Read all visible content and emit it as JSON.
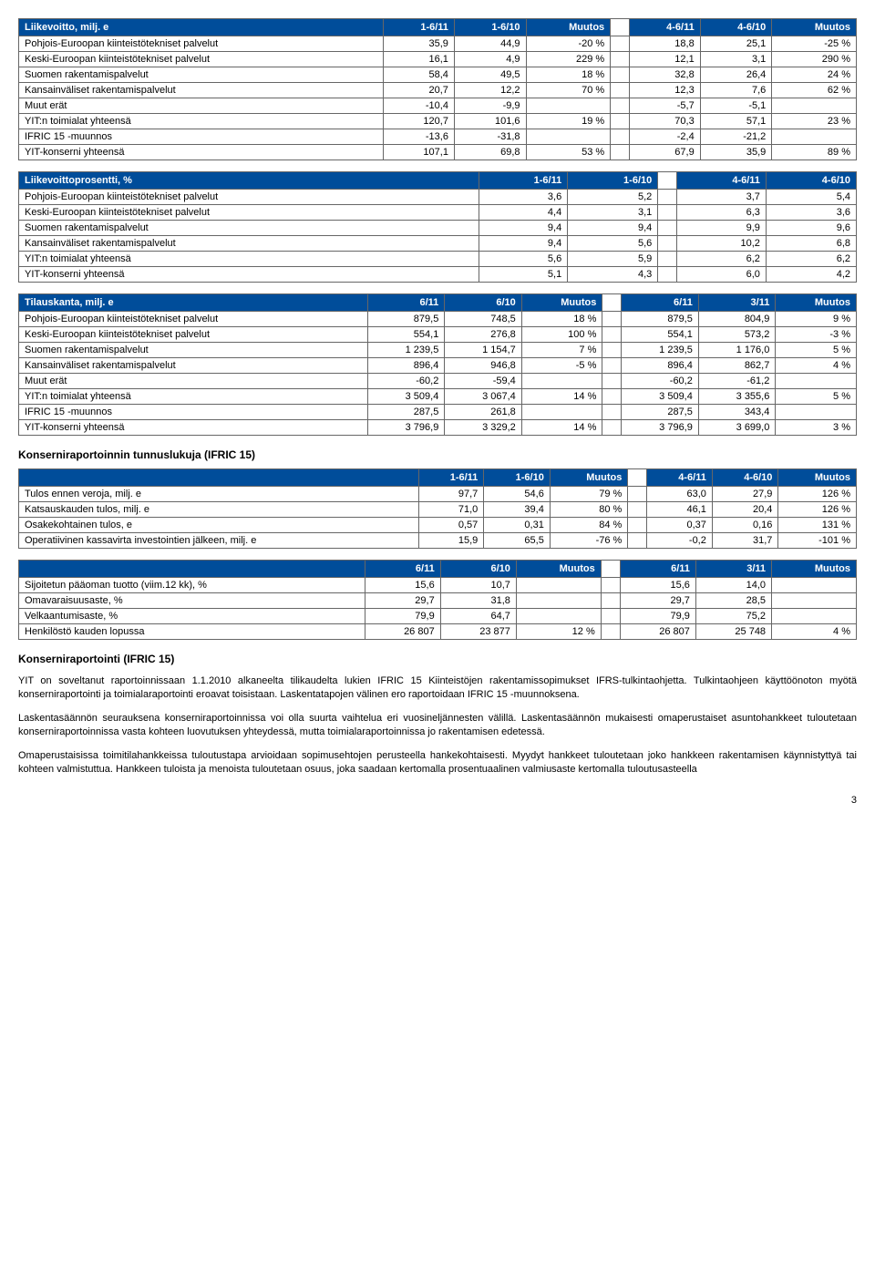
{
  "table1": {
    "title": "Liikevoitto, milj. e",
    "cols": [
      "1-6/11",
      "1-6/10",
      "Muutos",
      "4-6/11",
      "4-6/10",
      "Muutos"
    ],
    "rows": [
      {
        "label": "Pohjois-Euroopan kiinteistötekniset palvelut",
        "v": [
          "35,9",
          "44,9",
          "-20 %",
          "18,8",
          "25,1",
          "-25 %"
        ]
      },
      {
        "label": "Keski-Euroopan kiinteistötekniset palvelut",
        "v": [
          "16,1",
          "4,9",
          "229 %",
          "12,1",
          "3,1",
          "290 %"
        ]
      },
      {
        "label": "Suomen rakentamispalvelut",
        "v": [
          "58,4",
          "49,5",
          "18 %",
          "32,8",
          "26,4",
          "24 %"
        ]
      },
      {
        "label": "Kansainväliset rakentamispalvelut",
        "v": [
          "20,7",
          "12,2",
          "70 %",
          "12,3",
          "7,6",
          "62 %"
        ]
      },
      {
        "label": "Muut erät",
        "v": [
          "-10,4",
          "-9,9",
          "",
          "-5,7",
          "-5,1",
          ""
        ]
      },
      {
        "label": "YIT:n toimialat yhteensä",
        "v": [
          "120,7",
          "101,6",
          "19 %",
          "70,3",
          "57,1",
          "23 %"
        ]
      },
      {
        "label": "IFRIC 15 -muunnos",
        "v": [
          "-13,6",
          "-31,8",
          "",
          "-2,4",
          "-21,2",
          ""
        ]
      },
      {
        "label": "YIT-konserni yhteensä",
        "v": [
          "107,1",
          "69,8",
          "53 %",
          "67,9",
          "35,9",
          "89 %"
        ]
      }
    ]
  },
  "table2": {
    "title": "Liikevoittoprosentti, %",
    "cols": [
      "1-6/11",
      "1-6/10",
      "4-6/11",
      "4-6/10"
    ],
    "rows": [
      {
        "label": "Pohjois-Euroopan kiinteistötekniset palvelut",
        "v": [
          "3,6",
          "5,2",
          "3,7",
          "5,4"
        ]
      },
      {
        "label": "Keski-Euroopan kiinteistötekniset palvelut",
        "v": [
          "4,4",
          "3,1",
          "6,3",
          "3,6"
        ]
      },
      {
        "label": "Suomen rakentamispalvelut",
        "v": [
          "9,4",
          "9,4",
          "9,9",
          "9,6"
        ]
      },
      {
        "label": "Kansainväliset rakentamispalvelut",
        "v": [
          "9,4",
          "5,6",
          "10,2",
          "6,8"
        ]
      },
      {
        "label": "YIT:n toimialat yhteensä",
        "v": [
          "5,6",
          "5,9",
          "6,2",
          "6,2"
        ]
      },
      {
        "label": "YIT-konserni yhteensä",
        "v": [
          "5,1",
          "4,3",
          "6,0",
          "4,2"
        ]
      }
    ]
  },
  "table3": {
    "title": "Tilauskanta, milj. e",
    "cols": [
      "6/11",
      "6/10",
      "Muutos",
      "6/11",
      "3/11",
      "Muutos"
    ],
    "rows": [
      {
        "label": "Pohjois-Euroopan kiinteistötekniset palvelut",
        "v": [
          "879,5",
          "748,5",
          "18 %",
          "879,5",
          "804,9",
          "9 %"
        ]
      },
      {
        "label": "Keski-Euroopan kiinteistötekniset palvelut",
        "v": [
          "554,1",
          "276,8",
          "100 %",
          "554,1",
          "573,2",
          "-3 %"
        ]
      },
      {
        "label": "Suomen rakentamispalvelut",
        "v": [
          "1 239,5",
          "1 154,7",
          "7 %",
          "1 239,5",
          "1 176,0",
          "5 %"
        ]
      },
      {
        "label": "Kansainväliset rakentamispalvelut",
        "v": [
          "896,4",
          "946,8",
          "-5 %",
          "896,4",
          "862,7",
          "4 %"
        ]
      },
      {
        "label": "Muut erät",
        "v": [
          "-60,2",
          "-59,4",
          "",
          "-60,2",
          "-61,2",
          ""
        ]
      },
      {
        "label": "YIT:n toimialat yhteensä",
        "v": [
          "3 509,4",
          "3 067,4",
          "14 %",
          "3 509,4",
          "3 355,6",
          "5 %"
        ]
      },
      {
        "label": "IFRIC 15 -muunnos",
        "v": [
          "287,5",
          "261,8",
          "",
          "287,5",
          "343,4",
          ""
        ]
      },
      {
        "label": "YIT-konserni yhteensä",
        "v": [
          "3 796,9",
          "3 329,2",
          "14 %",
          "3 796,9",
          "3 699,0",
          "3 %"
        ]
      }
    ]
  },
  "heading1": "Konserniraportoinnin tunnuslukuja (IFRIC 15)",
  "table4": {
    "cols": [
      "1-6/11",
      "1-6/10",
      "Muutos",
      "4-6/11",
      "4-6/10",
      "Muutos"
    ],
    "rows": [
      {
        "label": "Tulos ennen veroja, milj. e",
        "v": [
          "97,7",
          "54,6",
          "79 %",
          "63,0",
          "27,9",
          "126 %"
        ]
      },
      {
        "label": "Katsauskauden tulos, milj. e",
        "v": [
          "71,0",
          "39,4",
          "80 %",
          "46,1",
          "20,4",
          "126 %"
        ]
      },
      {
        "label": "Osakekohtainen tulos, e",
        "v": [
          "0,57",
          "0,31",
          "84 %",
          "0,37",
          "0,16",
          "131 %"
        ]
      },
      {
        "label": "Operatiivinen kassavirta investointien jälkeen, milj. e",
        "v": [
          "15,9",
          "65,5",
          "-76 %",
          "-0,2",
          "31,7",
          "-101 %"
        ]
      }
    ]
  },
  "table5": {
    "cols": [
      "6/11",
      "6/10",
      "Muutos",
      "6/11",
      "3/11",
      "Muutos"
    ],
    "rows": [
      {
        "label": "Sijoitetun pääoman tuotto (viim.12 kk), %",
        "v": [
          "15,6",
          "10,7",
          "",
          "15,6",
          "14,0",
          ""
        ]
      },
      {
        "label": "Omavaraisuusaste, %",
        "v": [
          "29,7",
          "31,8",
          "",
          "29,7",
          "28,5",
          ""
        ]
      },
      {
        "label": "Velkaantumisaste, %",
        "v": [
          "79,9",
          "64,7",
          "",
          "79,9",
          "75,2",
          ""
        ]
      },
      {
        "label": "Henkilöstö kauden lopussa",
        "v": [
          "26 807",
          "23 877",
          "12 %",
          "26 807",
          "25 748",
          "4 %"
        ]
      }
    ]
  },
  "heading2": "Konserniraportointi (IFRIC 15)",
  "para1": "YIT on soveltanut raportoinnissaan 1.1.2010 alkaneelta tilikaudelta lukien IFRIC 15 Kiinteistöjen rakentamissopimukset IFRS-tulkintaohjetta. Tulkintaohjeen käyttöönoton myötä konserniraportointi ja toimialaraportointi eroavat toisistaan. Laskentatapojen välinen ero raportoidaan IFRIC 15 -muunnoksena.",
  "para2": "Laskentasäännön seurauksena konserniraportoinnissa voi olla suurta vaihtelua eri vuosineljännesten välillä. Laskentasäännön mukaisesti omaperustaiset asuntohankkeet tuloutetaan konserniraportoinnissa vasta kohteen luovutuksen yhteydessä, mutta toimialaraportoinnissa jo rakentamisen edetessä.",
  "para3": "Omaperustaisissa toimitilahankkeissa tuloutustapa arvioidaan sopimusehtojen perusteella hankekohtaisesti. Myydyt hankkeet tuloutetaan joko hankkeen rakentamisen käynnistyttyä tai kohteen valmistuttua. Hankkeen tuloista ja menoista tuloutetaan osuus, joka saadaan kertomalla prosentuaalinen valmiusaste kertomalla tuloutusasteella",
  "pageNum": "3"
}
